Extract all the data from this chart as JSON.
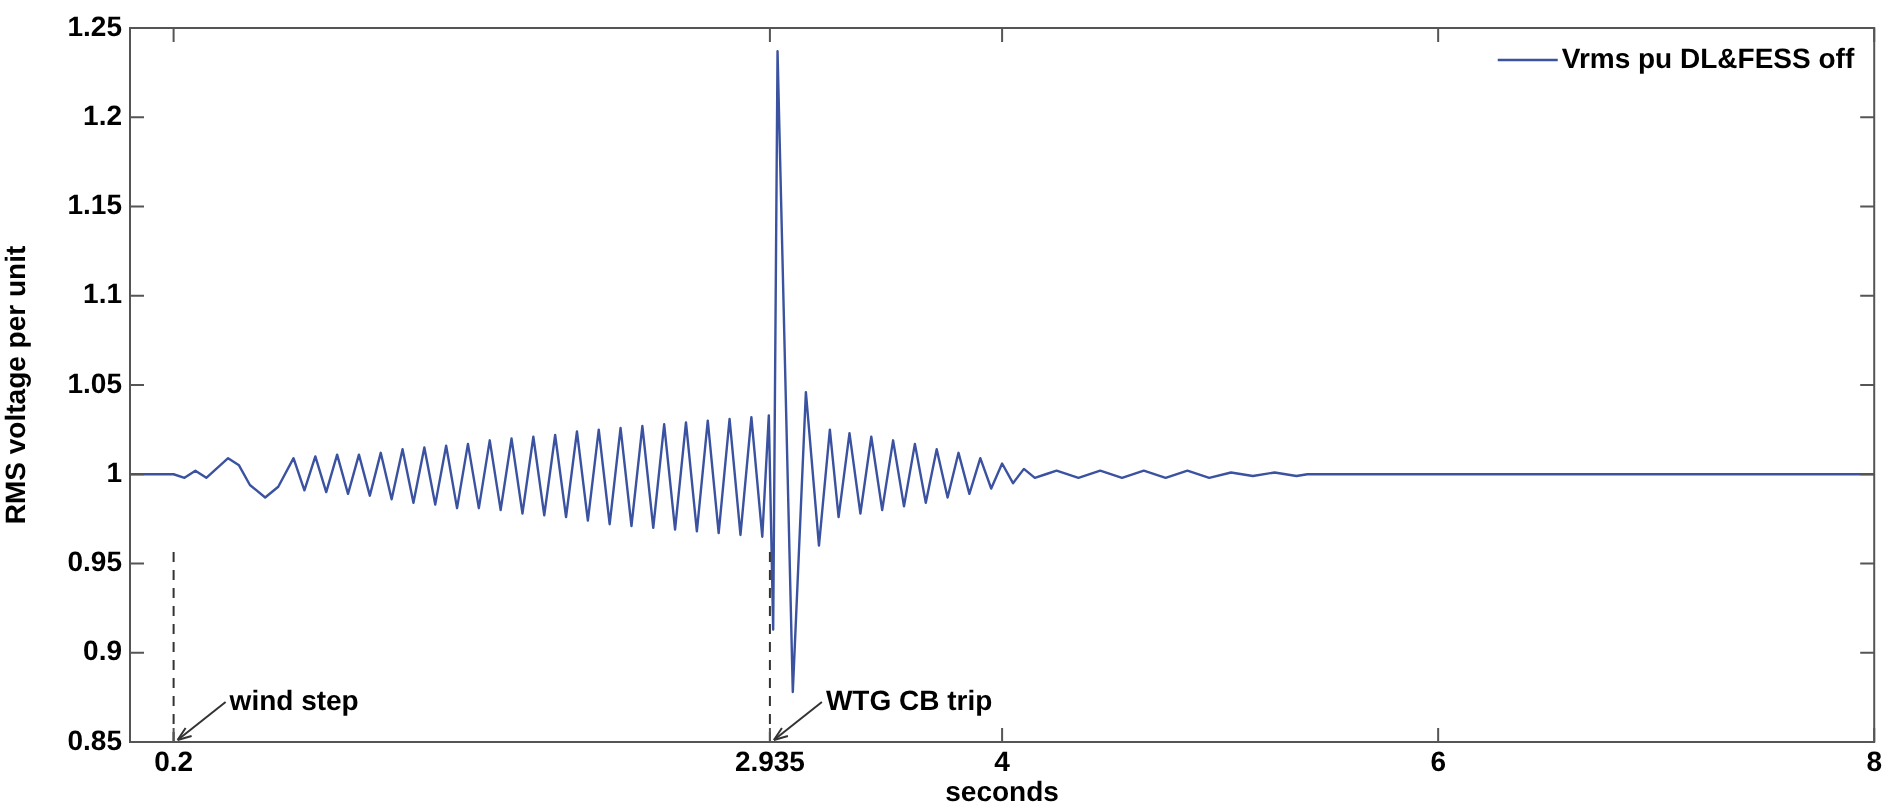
{
  "chart_data": {
    "type": "line",
    "xlabel": "seconds",
    "ylabel": "RMS voltage per unit",
    "xlim": [
      0,
      8
    ],
    "xticks": [
      0.2,
      2.935,
      4,
      6,
      8
    ],
    "ylim": [
      0.85,
      1.25
    ],
    "yticks": [
      0.85,
      0.9,
      0.95,
      1,
      1.05,
      1.1,
      1.15,
      1.2,
      1.25
    ],
    "legend": "top right",
    "grid": false,
    "ref_lines": [
      {
        "axis": "x",
        "value": 0.2,
        "label": "wind step",
        "line_style": "dashed"
      },
      {
        "axis": "x",
        "value": 2.935,
        "label": "WTG CB trip",
        "line_style": "dashed"
      }
    ],
    "series": [
      {
        "name": "Vrms pu DL&FESS off",
        "color": "#3a52a0",
        "x": [
          0,
          0.2,
          0.25,
          0.3,
          0.35,
          0.45,
          0.5,
          0.55,
          0.62,
          0.68,
          0.75,
          0.8,
          0.85,
          0.9,
          0.95,
          1.0,
          1.05,
          1.1,
          1.15,
          1.2,
          1.25,
          1.3,
          1.35,
          1.4,
          1.45,
          1.5,
          1.55,
          1.6,
          1.65,
          1.7,
          1.75,
          1.8,
          1.85,
          1.9,
          1.95,
          2.0,
          2.05,
          2.1,
          2.15,
          2.2,
          2.25,
          2.3,
          2.35,
          2.4,
          2.45,
          2.5,
          2.55,
          2.6,
          2.65,
          2.7,
          2.75,
          2.8,
          2.85,
          2.9,
          2.93,
          2.95,
          2.97,
          3.04,
          3.1,
          3.16,
          3.21,
          3.25,
          3.3,
          3.35,
          3.4,
          3.45,
          3.5,
          3.55,
          3.6,
          3.65,
          3.7,
          3.75,
          3.8,
          3.85,
          3.9,
          3.95,
          4.0,
          4.05,
          4.1,
          4.15,
          4.2,
          4.25,
          4.35,
          4.45,
          4.55,
          4.65,
          4.75,
          4.85,
          4.95,
          5.05,
          5.15,
          5.25,
          5.35,
          5.4,
          8.0
        ],
        "values": [
          1.0,
          1.0,
          0.998,
          1.002,
          0.998,
          1.009,
          1.005,
          0.994,
          0.987,
          0.993,
          1.009,
          0.991,
          1.01,
          0.99,
          1.011,
          0.989,
          1.011,
          0.988,
          1.012,
          0.986,
          1.014,
          0.984,
          1.015,
          0.983,
          1.016,
          0.981,
          1.017,
          0.981,
          1.019,
          0.98,
          1.02,
          0.978,
          1.021,
          0.977,
          1.022,
          0.976,
          1.024,
          0.974,
          1.025,
          0.972,
          1.026,
          0.971,
          1.027,
          0.97,
          1.028,
          0.969,
          1.029,
          0.968,
          1.03,
          0.967,
          1.031,
          0.966,
          1.032,
          0.965,
          1.033,
          0.913,
          1.237,
          0.878,
          1.046,
          0.96,
          1.025,
          0.976,
          1.023,
          0.978,
          1.021,
          0.98,
          1.019,
          0.982,
          1.017,
          0.984,
          1.014,
          0.987,
          1.012,
          0.989,
          1.009,
          0.992,
          1.006,
          0.995,
          1.003,
          0.998,
          1.0,
          1.002,
          0.998,
          1.002,
          0.998,
          1.002,
          0.998,
          1.002,
          0.998,
          1.001,
          0.999,
          1.001,
          0.999,
          1.0,
          1.0
        ]
      }
    ]
  }
}
